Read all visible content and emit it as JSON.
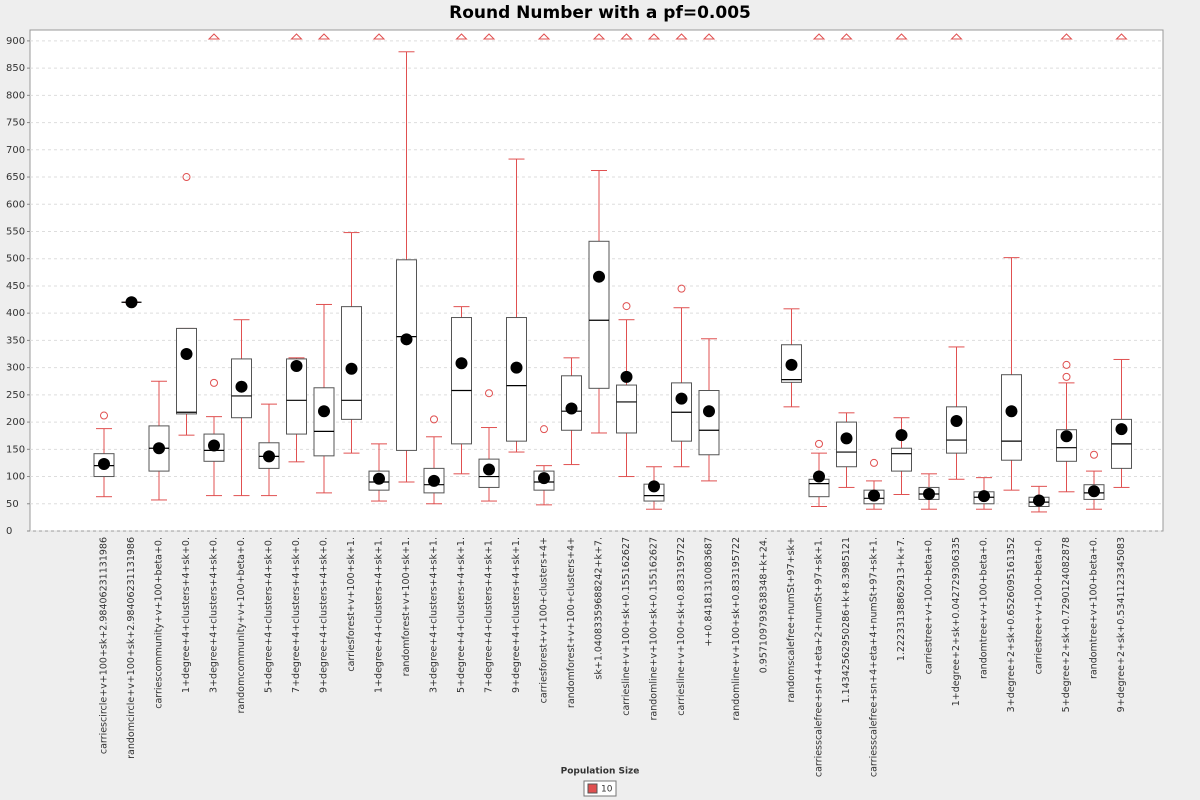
{
  "chart_data": {
    "type": "box",
    "title": "Round Number with a pf=0.005",
    "categories": [
      "carriescircle+v+100+sk+2.98406231131986",
      "randomcircle+v+100+sk+2.98406231131986",
      "carriescommunity+v+100+beta+0.",
      "1+degree+4+clusters+4+sk+0.",
      "3+degree+4+clusters+4+sk+0.",
      "randomcommunity+v+100+beta+0.",
      "5+degree+4+clusters+4+sk+0.",
      "7+degree+4+clusters+4+sk+0.",
      "9+degree+4+clusters+4+sk+0.",
      "carriesforest+v+100+sk+1.",
      "1+degree+4+clusters+4+sk+1.",
      "randomforest+v+100+sk+1.",
      "3+degree+4+clusters+4+sk+1.",
      "5+degree+4+clusters+4+sk+1.",
      "7+degree+4+clusters+4+sk+1.",
      "9+degree+4+clusters+4+sk+1.",
      "carriesforest+v+100+clusters+4+",
      "randomforest+v+100+clusters+4+",
      "sk+1.04083359688242+k+7.",
      "carriesline+v+100+sk+0.155162627",
      "randomline+v+100+sk+0.155162627",
      "carriesline+v+100+sk+0.833195722",
      "++0.84181310083687",
      "randomline+v+100+sk+0.833195722",
      "0.957109793638348+k+24.",
      "randomscalefree+numSt+97+sk+",
      "carriesscalefree+sn+4+eta+2+numSt+97+sk+1.",
      "1.14342562950286+k+8.3985121",
      "carriesscalefree+sn+4+eta+4+numSt+97+sk+1.",
      "1.22233138862913+k+7.",
      "carriestree+v+100+beta+0.",
      "1+degree+2+sk+0.042729306335",
      "randomtree+v+100+beta+0.",
      "3+degree+2+sk+0.6526095161352",
      "carriestree+v+100+beta+0.",
      "5+degree+2+sk+0.7290124082878",
      "randomtree+v+100+beta+0.",
      "9+degree+2+sk+0.5341123345083"
    ],
    "series": [
      {
        "name": "10",
        "color": "#e05050",
        "boxes": [
          {
            "min": 63,
            "q1": 100,
            "median": 120,
            "q3": 142,
            "max": 188,
            "mean": 123,
            "outliers": [
              212
            ],
            "offscale": false
          },
          {
            "min": 420,
            "q1": 420,
            "median": 420,
            "q3": 420,
            "max": 420,
            "mean": 420,
            "outliers": [],
            "offscale": false
          },
          {
            "min": 57,
            "q1": 110,
            "median": 152,
            "q3": 193,
            "max": 275,
            "mean": 152,
            "outliers": [],
            "offscale": false
          },
          {
            "min": 176,
            "q1": 215,
            "median": 218,
            "q3": 372,
            "max": 372,
            "mean": 325,
            "outliers": [
              650
            ],
            "offscale": false
          },
          {
            "min": 65,
            "q1": 128,
            "median": 148,
            "q3": 178,
            "max": 210,
            "mean": 157,
            "outliers": [
              272
            ],
            "offscale": true
          },
          {
            "min": 65,
            "q1": 208,
            "median": 248,
            "q3": 316,
            "max": 388,
            "mean": 265,
            "outliers": [],
            "offscale": false
          },
          {
            "min": 65,
            "q1": 115,
            "median": 137,
            "q3": 162,
            "max": 233,
            "mean": 137,
            "outliers": [],
            "offscale": false
          },
          {
            "min": 127,
            "q1": 178,
            "median": 240,
            "q3": 316,
            "max": 318,
            "mean": 303,
            "outliers": [],
            "offscale": true
          },
          {
            "min": 70,
            "q1": 138,
            "median": 183,
            "q3": 263,
            "max": 416,
            "mean": 220,
            "outliers": [],
            "offscale": true
          },
          {
            "min": 143,
            "q1": 205,
            "median": 240,
            "q3": 412,
            "max": 548,
            "mean": 298,
            "outliers": [],
            "offscale": false
          },
          {
            "min": 55,
            "q1": 75,
            "median": 90,
            "q3": 110,
            "max": 160,
            "mean": 96,
            "outliers": [],
            "offscale": true
          },
          {
            "min": 90,
            "q1": 148,
            "median": 357,
            "q3": 498,
            "max": 880,
            "mean": 352,
            "outliers": [],
            "offscale": false
          },
          {
            "min": 50,
            "q1": 70,
            "median": 85,
            "q3": 115,
            "max": 173,
            "mean": 92,
            "outliers": [
              205
            ],
            "offscale": false
          },
          {
            "min": 105,
            "q1": 160,
            "median": 258,
            "q3": 392,
            "max": 412,
            "mean": 308,
            "outliers": [],
            "offscale": true
          },
          {
            "min": 55,
            "q1": 80,
            "median": 100,
            "q3": 132,
            "max": 190,
            "mean": 113,
            "outliers": [
              253
            ],
            "offscale": true
          },
          {
            "min": 145,
            "q1": 165,
            "median": 267,
            "q3": 392,
            "max": 683,
            "mean": 300,
            "outliers": [],
            "offscale": false
          },
          {
            "min": 48,
            "q1": 75,
            "median": 90,
            "q3": 110,
            "max": 120,
            "mean": 97,
            "outliers": [
              187
            ],
            "offscale": true
          },
          {
            "min": 122,
            "q1": 185,
            "median": 220,
            "q3": 285,
            "max": 318,
            "mean": 225,
            "outliers": [],
            "offscale": false
          },
          {
            "min": 180,
            "q1": 262,
            "median": 387,
            "q3": 532,
            "max": 662,
            "mean": 467,
            "outliers": [],
            "offscale": true
          },
          {
            "min": 100,
            "q1": 180,
            "median": 237,
            "q3": 268,
            "max": 388,
            "mean": 283,
            "outliers": [
              413
            ],
            "offscale": true
          },
          {
            "min": 40,
            "q1": 55,
            "median": 65,
            "q3": 86,
            "max": 118,
            "mean": 82,
            "outliers": [],
            "offscale": true
          },
          {
            "min": 118,
            "q1": 165,
            "median": 218,
            "q3": 272,
            "max": 410,
            "mean": 243,
            "outliers": [
              445
            ],
            "offscale": true
          },
          {
            "min": 92,
            "q1": 140,
            "median": 185,
            "q3": 258,
            "max": 353,
            "mean": 220,
            "outliers": [],
            "offscale": true
          },
          null,
          null,
          {
            "min": 228,
            "q1": 273,
            "median": 278,
            "q3": 342,
            "max": 408,
            "mean": 305,
            "outliers": [],
            "offscale": false
          },
          {
            "min": 45,
            "q1": 63,
            "median": 87,
            "q3": 95,
            "max": 143,
            "mean": 100,
            "outliers": [
              160
            ],
            "offscale": true
          },
          {
            "min": 80,
            "q1": 118,
            "median": 145,
            "q3": 200,
            "max": 217,
            "mean": 170,
            "outliers": [],
            "offscale": true
          },
          {
            "min": 40,
            "q1": 50,
            "median": 60,
            "q3": 75,
            "max": 92,
            "mean": 65,
            "outliers": [
              125
            ],
            "offscale": false
          },
          {
            "min": 67,
            "q1": 110,
            "median": 142,
            "q3": 152,
            "max": 208,
            "mean": 176,
            "outliers": [],
            "offscale": true
          },
          {
            "min": 40,
            "q1": 58,
            "median": 68,
            "q3": 80,
            "max": 105,
            "mean": 68,
            "outliers": [],
            "offscale": false
          },
          {
            "min": 95,
            "q1": 143,
            "median": 167,
            "q3": 228,
            "max": 338,
            "mean": 202,
            "outliers": [],
            "offscale": true
          },
          {
            "min": 40,
            "q1": 50,
            "median": 62,
            "q3": 72,
            "max": 98,
            "mean": 64,
            "outliers": [],
            "offscale": false
          },
          {
            "min": 75,
            "q1": 130,
            "median": 165,
            "q3": 287,
            "max": 502,
            "mean": 220,
            "outliers": [],
            "offscale": false
          },
          {
            "min": 35,
            "q1": 45,
            "median": 53,
            "q3": 62,
            "max": 82,
            "mean": 56,
            "outliers": [],
            "offscale": false
          },
          {
            "min": 72,
            "q1": 128,
            "median": 153,
            "q3": 186,
            "max": 272,
            "mean": 174,
            "outliers": [
              283,
              305
            ],
            "offscale": true
          },
          {
            "min": 40,
            "q1": 58,
            "median": 70,
            "q3": 85,
            "max": 110,
            "mean": 73,
            "outliers": [
              140
            ],
            "offscale": false
          },
          {
            "min": 80,
            "q1": 115,
            "median": 160,
            "q3": 205,
            "max": 315,
            "mean": 187,
            "outliers": [],
            "offscale": true
          }
        ]
      }
    ],
    "legend_title": "Population Size",
    "ylim": [
      0,
      920
    ],
    "yticks": [
      0,
      50,
      100,
      150,
      200,
      250,
      300,
      350,
      400,
      450,
      500,
      550,
      600,
      650,
      700,
      750,
      800,
      850,
      900
    ],
    "grid": true
  }
}
